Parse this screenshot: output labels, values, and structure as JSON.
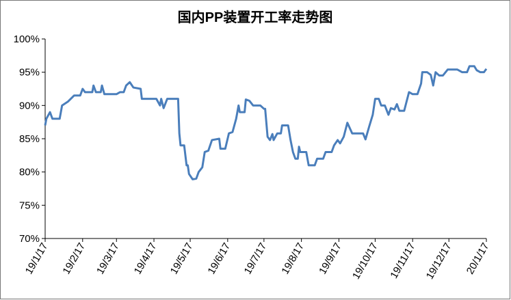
{
  "chart_data": {
    "type": "line",
    "title": "国内PP装置开工率走势图",
    "x": [
      "19/1/17",
      "19/1/18",
      "19/1/21",
      "19/1/23",
      "19/1/29",
      "19/1/31",
      "19/2/5",
      "19/2/10",
      "19/2/15",
      "19/2/17",
      "19/2/19",
      "19/2/25",
      "19/2/26",
      "19/2/28",
      "19/3/4",
      "19/3/5",
      "19/3/7",
      "19/3/17",
      "19/3/20",
      "19/3/23",
      "19/3/25",
      "19/3/28",
      "19/3/31",
      "19/4/6",
      "19/4/7",
      "19/4/19",
      "19/4/22",
      "19/4/23",
      "19/4/25",
      "19/4/28",
      "19/5/7",
      "19/5/8",
      "19/5/9",
      "19/5/12",
      "19/5/14",
      "19/5/15",
      "19/5/16",
      "19/5/19",
      "19/5/22",
      "19/5/24",
      "19/5/27",
      "19/5/29",
      "19/6/1",
      "19/6/4",
      "19/6/10",
      "19/6/11",
      "19/6/15",
      "19/6/18",
      "19/6/21",
      "19/6/24",
      "19/6/26",
      "19/6/27",
      "19/7/1",
      "19/7/2",
      "19/7/5",
      "19/7/8",
      "19/7/14",
      "19/7/17",
      "19/7/18",
      "19/7/20",
      "19/7/22",
      "19/7/24",
      "19/7/25",
      "19/7/28",
      "19/7/31",
      "19/8/1",
      "19/8/6",
      "19/8/8",
      "19/8/10",
      "19/8/12",
      "19/8/14",
      "19/8/15",
      "19/8/16",
      "19/8/21",
      "19/8/23",
      "19/8/28",
      "19/8/30",
      "19/9/4",
      "19/9/6",
      "19/9/11",
      "19/9/13",
      "19/9/16",
      "19/9/18",
      "19/9/21",
      "19/9/24",
      "19/9/28",
      "19/10/7",
      "19/10/9",
      "19/10/12",
      "19/10/15",
      "19/10/17",
      "19/10/20",
      "19/10/22",
      "19/10/25",
      "19/10/28",
      "19/10/30",
      "19/11/2",
      "19/11/4",
      "19/11/6",
      "19/11/10",
      "19/11/12",
      "19/11/14",
      "19/11/17",
      "19/11/21",
      "19/11/24",
      "19/11/25",
      "19/11/29",
      "19/12/2",
      "19/12/4",
      "19/12/6",
      "19/12/9",
      "19/12/12",
      "19/12/16",
      "19/12/24",
      "19/12/28",
      "20/1/1",
      "20/1/3",
      "20/1/7",
      "20/1/9",
      "20/1/12",
      "20/1/15",
      "20/1/17"
    ],
    "series": [
      {
        "color": "#4a7ebb",
        "values": [
          87,
          88,
          89,
          88,
          88,
          90,
          90.6,
          91.5,
          91.5,
          92.5,
          92,
          92,
          93,
          92,
          92,
          93,
          91.7,
          91.7,
          92,
          92,
          93,
          93.5,
          92.7,
          92.5,
          91,
          91,
          90,
          91,
          89.6,
          91,
          91,
          85.8,
          84,
          84,
          81,
          81,
          79.7,
          78.9,
          79,
          80,
          80.7,
          83,
          83.2,
          84.8,
          85,
          83.5,
          83.5,
          85.8,
          86,
          88,
          90,
          89,
          89,
          90.9,
          90.7,
          90,
          90,
          89.5,
          89.5,
          85.3,
          84.8,
          85.7,
          84.8,
          85.8,
          85.8,
          87,
          87,
          84.8,
          83,
          82,
          82,
          83.8,
          83,
          83,
          81,
          81,
          82,
          82,
          83,
          83,
          84,
          84.8,
          84.3,
          85.3,
          87.4,
          85.8,
          85.8,
          84.9,
          86.8,
          88.6,
          91,
          91,
          90,
          90,
          88.6,
          89.6,
          89.4,
          90.2,
          89.2,
          89.2,
          90.6,
          92,
          91.7,
          91.7,
          93.3,
          95,
          95,
          94.6,
          93,
          95,
          94.5,
          94.5,
          95.4,
          95.4,
          95,
          95,
          95.9,
          95.9,
          95.3,
          95,
          95,
          95.5
        ]
      }
    ],
    "xlim": [
      "19/1/17",
      "20/1/17"
    ],
    "xticks": [
      "19/1/17",
      "19/2/17",
      "19/3/17",
      "19/4/17",
      "19/5/17",
      "19/6/17",
      "19/7/17",
      "19/8/17",
      "19/9/17",
      "19/10/17",
      "19/11/17",
      "19/12/17",
      "20/1/17"
    ],
    "ylim": [
      70,
      100
    ],
    "yticks": [
      {
        "value": 70,
        "label": "70%"
      },
      {
        "value": 75,
        "label": "75%"
      },
      {
        "value": 80,
        "label": "80%"
      },
      {
        "value": 85,
        "label": "85%"
      },
      {
        "value": 90,
        "label": "90%"
      },
      {
        "value": 95,
        "label": "95%"
      },
      {
        "value": 100,
        "label": "100%"
      }
    ]
  }
}
